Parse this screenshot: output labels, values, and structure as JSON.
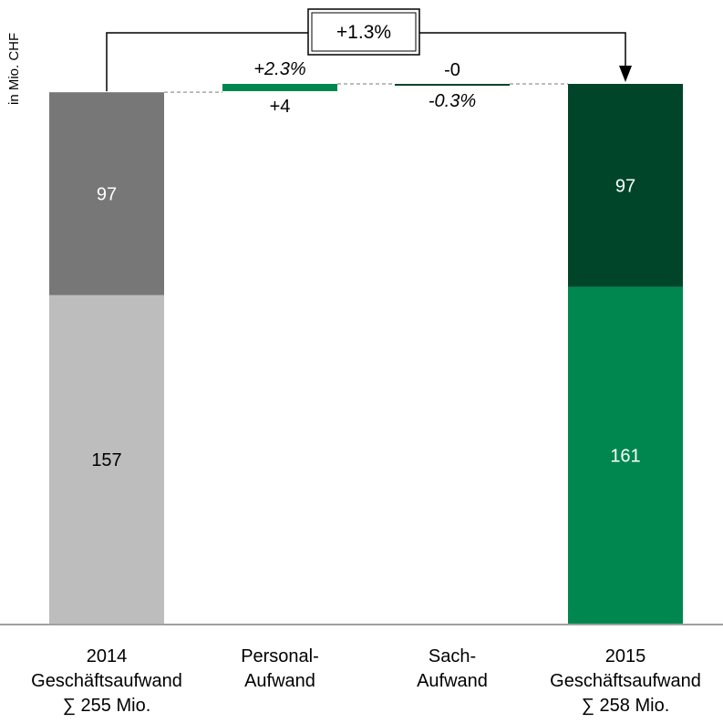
{
  "chart_data": {
    "type": "waterfall",
    "unit_label": "in Mio. CHF",
    "colors": {
      "bar_2014_bottom": "#bdbdbd",
      "bar_2014_top": "#777777",
      "bar_2015_bottom": "#00874f",
      "bar_2015_top": "#00452a",
      "delta_positive": "#00874f",
      "delta_negative": "#00452a",
      "connector": "#a6a6a6",
      "axis": "#808080"
    },
    "categories": [
      {
        "label_lines": [
          "2014",
          "Geschäftsaufwand",
          "∑ 255 Mio."
        ]
      },
      {
        "label_lines": [
          "Personal-",
          "Aufwand"
        ]
      },
      {
        "label_lines": [
          "Sach-",
          "Aufwand"
        ]
      },
      {
        "label_lines": [
          "2015",
          "Geschäftsaufwand",
          "∑ 258 Mio."
        ]
      }
    ],
    "bars": [
      {
        "kind": "total",
        "segments": [
          {
            "value": 157,
            "label": "157",
            "color_key": "bar_2014_bottom",
            "text_color": "#000000"
          },
          {
            "value": 97,
            "label": "97",
            "color_key": "bar_2014_top",
            "text_color": "#ffffff"
          }
        ]
      },
      {
        "kind": "delta",
        "value": 4,
        "value_label": "+4",
        "pct_label": "+2.3%",
        "color_key": "delta_positive"
      },
      {
        "kind": "delta",
        "value": -0.3,
        "value_label": "-0",
        "pct_label": "-0.3%",
        "color_key": "delta_negative"
      },
      {
        "kind": "total",
        "segments": [
          {
            "value": 161,
            "label": "161",
            "color_key": "bar_2015_bottom",
            "text_color": "#ffffff"
          },
          {
            "value": 97,
            "label": "97",
            "color_key": "bar_2015_top",
            "text_color": "#ffffff"
          }
        ]
      }
    ],
    "change_callout": "+1.3%",
    "ylim": [
      0,
      258
    ]
  }
}
